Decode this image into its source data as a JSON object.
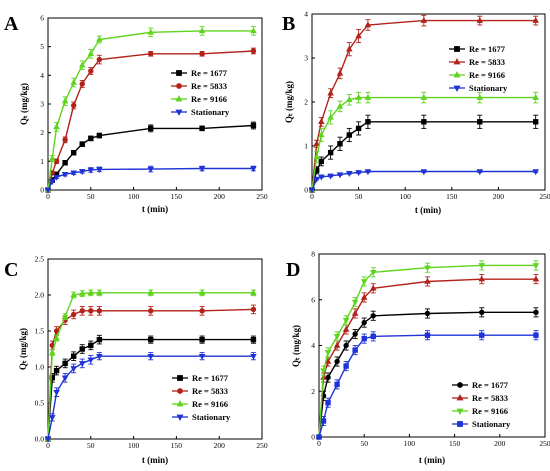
{
  "chart_data": [
    {
      "type": "line",
      "panel_label": "A",
      "xlabel": "t (min)",
      "ylabel": "Qₜ (mg/kg)",
      "xlim": [
        0,
        250
      ],
      "ylim": [
        0,
        6
      ],
      "xticks": [
        "0",
        "50",
        "100",
        "150",
        "200",
        "250"
      ],
      "yticks": [
        "0",
        "1",
        "2",
        "3",
        "4",
        "5",
        "6"
      ],
      "legend_position": "right-middle",
      "series": [
        {
          "name": "Re = 1677",
          "color": "#000000",
          "marker": "square",
          "x": [
            0,
            5,
            10,
            20,
            30,
            40,
            50,
            60,
            120,
            180,
            240
          ],
          "y": [
            0,
            0.35,
            0.55,
            0.95,
            1.3,
            1.6,
            1.8,
            1.9,
            2.15,
            2.15,
            2.25
          ],
          "err": [
            0,
            0.05,
            0.06,
            0.08,
            0.08,
            0.08,
            0.08,
            0.08,
            0.12,
            0.08,
            0.12
          ]
        },
        {
          "name": "Re = 5833",
          "color": "#b2221a",
          "marker": "circle",
          "x": [
            0,
            5,
            10,
            20,
            30,
            40,
            50,
            60,
            120,
            180,
            240
          ],
          "y": [
            0,
            0.6,
            1.0,
            1.75,
            2.95,
            3.7,
            4.15,
            4.55,
            4.75,
            4.75,
            4.85
          ],
          "err": [
            0,
            0.05,
            0.08,
            0.1,
            0.12,
            0.12,
            0.12,
            0.15,
            0.08,
            0.08,
            0.1
          ]
        },
        {
          "name": "Re = 9166",
          "color": "#5fd41e",
          "marker": "triangle-up",
          "x": [
            0,
            5,
            10,
            20,
            30,
            40,
            50,
            60,
            120,
            180,
            240
          ],
          "y": [
            0,
            1.1,
            2.2,
            3.1,
            3.75,
            4.35,
            4.75,
            5.25,
            5.5,
            5.55,
            5.55
          ],
          "err": [
            0,
            0.1,
            0.15,
            0.15,
            0.15,
            0.15,
            0.15,
            0.12,
            0.15,
            0.15,
            0.15
          ]
        },
        {
          "name": "Stationary",
          "color": "#1f33d6",
          "marker": "triangle-down",
          "x": [
            0,
            5,
            10,
            20,
            30,
            40,
            50,
            60,
            120,
            180,
            240
          ],
          "y": [
            0,
            0.3,
            0.45,
            0.55,
            0.6,
            0.65,
            0.7,
            0.72,
            0.73,
            0.75,
            0.75
          ],
          "err": [
            0,
            0.04,
            0.05,
            0.06,
            0.06,
            0.06,
            0.08,
            0.08,
            0.1,
            0.08,
            0.08
          ]
        }
      ]
    },
    {
      "type": "line",
      "panel_label": "B",
      "xlabel": "t (min)",
      "ylabel": "Qₜ (mg/kg)",
      "xlim": [
        0,
        250
      ],
      "ylim": [
        0,
        4
      ],
      "xticks": [
        "0",
        "50",
        "100",
        "150",
        "200",
        "250"
      ],
      "yticks": [
        "0",
        "1",
        "2",
        "3",
        "4"
      ],
      "legend_position": "right-middle",
      "series": [
        {
          "name": "Re = 1677",
          "color": "#000000",
          "marker": "square",
          "x": [
            0,
            5,
            10,
            20,
            30,
            40,
            50,
            60,
            120,
            180,
            240
          ],
          "y": [
            0,
            0.45,
            0.65,
            0.85,
            1.05,
            1.25,
            1.4,
            1.55,
            1.55,
            1.55,
            1.55
          ],
          "err": [
            0,
            0.08,
            0.1,
            0.15,
            0.15,
            0.15,
            0.15,
            0.15,
            0.15,
            0.15,
            0.15
          ]
        },
        {
          "name": "Re = 5833",
          "color": "#b2221a",
          "marker": "triangle-up",
          "x": [
            0,
            5,
            10,
            20,
            30,
            40,
            50,
            60,
            120,
            180,
            240
          ],
          "y": [
            0,
            1.05,
            1.55,
            2.2,
            2.65,
            3.2,
            3.5,
            3.75,
            3.85,
            3.85,
            3.85
          ],
          "err": [
            0,
            0.08,
            0.1,
            0.1,
            0.12,
            0.15,
            0.15,
            0.12,
            0.12,
            0.1,
            0.1
          ]
        },
        {
          "name": "Re = 9166",
          "color": "#5fd41e",
          "marker": "triangle-up",
          "x": [
            0,
            5,
            10,
            20,
            30,
            40,
            50,
            60,
            120,
            180,
            240
          ],
          "y": [
            0,
            0.75,
            1.25,
            1.65,
            1.9,
            2.05,
            2.1,
            2.1,
            2.1,
            2.1,
            2.1
          ],
          "err": [
            0,
            0.12,
            0.15,
            0.15,
            0.12,
            0.12,
            0.12,
            0.12,
            0.12,
            0.12,
            0.12
          ]
        },
        {
          "name": "Stationary",
          "color": "#1f33d6",
          "marker": "triangle-down",
          "x": [
            0,
            5,
            10,
            20,
            30,
            40,
            50,
            60,
            120,
            180,
            240
          ],
          "y": [
            0,
            0.25,
            0.3,
            0.32,
            0.35,
            0.38,
            0.4,
            0.42,
            0.42,
            0.42,
            0.42
          ],
          "err": [
            0,
            0.02,
            0.02,
            0.02,
            0.02,
            0.02,
            0.02,
            0.02,
            0.02,
            0.02,
            0.02
          ]
        }
      ]
    },
    {
      "type": "line",
      "panel_label": "C",
      "xlabel": "t (min)",
      "ylabel": "Qₜ (mg/kg)",
      "xlim": [
        0,
        250
      ],
      "ylim": [
        0,
        2.5
      ],
      "xticks": [
        "0",
        "50",
        "100",
        "150",
        "200",
        "250"
      ],
      "yticks": [
        "0.0",
        "0.5",
        "1.0",
        "1.5",
        "2.0",
        "2.5"
      ],
      "legend_position": "bottom-right",
      "series": [
        {
          "name": "Re = 1677",
          "color": "#000000",
          "marker": "square",
          "x": [
            0,
            5,
            10,
            20,
            30,
            40,
            50,
            60,
            120,
            180,
            240
          ],
          "y": [
            0,
            0.85,
            0.95,
            1.05,
            1.15,
            1.25,
            1.3,
            1.38,
            1.38,
            1.38,
            1.38
          ],
          "err": [
            0,
            0.06,
            0.06,
            0.06,
            0.06,
            0.06,
            0.06,
            0.06,
            0.05,
            0.05,
            0.05
          ]
        },
        {
          "name": "Re = 5833",
          "color": "#b2221a",
          "marker": "circle",
          "x": [
            0,
            5,
            10,
            20,
            30,
            40,
            50,
            60,
            120,
            180,
            240
          ],
          "y": [
            0,
            1.3,
            1.5,
            1.65,
            1.73,
            1.78,
            1.78,
            1.78,
            1.78,
            1.78,
            1.8
          ],
          "err": [
            0,
            0.06,
            0.06,
            0.06,
            0.06,
            0.06,
            0.06,
            0.06,
            0.06,
            0.06,
            0.06
          ]
        },
        {
          "name": "Re = 9166",
          "color": "#5fd41e",
          "marker": "triangle-up",
          "x": [
            0,
            5,
            10,
            20,
            30,
            40,
            50,
            60,
            120,
            180,
            240
          ],
          "y": [
            0,
            1.2,
            1.4,
            1.7,
            2.0,
            2.02,
            2.03,
            2.03,
            2.03,
            2.03,
            2.03
          ],
          "err": [
            0,
            0.04,
            0.04,
            0.04,
            0.04,
            0.04,
            0.04,
            0.04,
            0.04,
            0.04,
            0.04
          ]
        },
        {
          "name": "Stationary",
          "color": "#1f33d6",
          "marker": "triangle-down",
          "x": [
            0,
            5,
            10,
            20,
            30,
            40,
            50,
            60,
            120,
            180,
            240
          ],
          "y": [
            0,
            0.3,
            0.65,
            0.85,
            0.98,
            1.05,
            1.1,
            1.15,
            1.15,
            1.15,
            1.15
          ],
          "err": [
            0,
            0.05,
            0.06,
            0.06,
            0.06,
            0.06,
            0.06,
            0.05,
            0.05,
            0.05,
            0.05
          ]
        }
      ]
    },
    {
      "type": "line",
      "panel_label": "D",
      "xlabel": "t (min)",
      "ylabel": "Qₜ (mg/kg)",
      "xlim": [
        0,
        250
      ],
      "ylim": [
        0,
        8
      ],
      "xticks": [
        "0",
        "50",
        "100",
        "150",
        "200",
        "250"
      ],
      "yticks": [
        "0",
        "2",
        "4",
        "6",
        "8"
      ],
      "legend_position": "bottom-right",
      "series": [
        {
          "name": "Re = 1677",
          "color": "#000000",
          "marker": "circle",
          "x": [
            0,
            5,
            10,
            20,
            30,
            40,
            50,
            60,
            120,
            180,
            240
          ],
          "y": [
            0,
            1.8,
            2.6,
            3.3,
            4.0,
            4.5,
            5.0,
            5.3,
            5.4,
            5.45,
            5.45
          ],
          "err": [
            0,
            0.2,
            0.2,
            0.2,
            0.2,
            0.2,
            0.2,
            0.2,
            0.2,
            0.2,
            0.2
          ]
        },
        {
          "name": "Re = 5833",
          "color": "#b2221a",
          "marker": "triangle-up",
          "x": [
            0,
            5,
            10,
            20,
            30,
            40,
            50,
            60,
            120,
            180,
            240
          ],
          "y": [
            0,
            2.6,
            3.3,
            4.0,
            4.7,
            5.4,
            6.1,
            6.5,
            6.8,
            6.9,
            6.9
          ],
          "err": [
            0,
            0.2,
            0.2,
            0.2,
            0.2,
            0.2,
            0.2,
            0.2,
            0.2,
            0.2,
            0.2
          ]
        },
        {
          "name": "Re = 9166",
          "color": "#5fd41e",
          "marker": "triangle-down",
          "x": [
            0,
            5,
            10,
            20,
            30,
            40,
            50,
            60,
            120,
            180,
            240
          ],
          "y": [
            0,
            2.9,
            3.7,
            4.4,
            5.1,
            5.9,
            6.8,
            7.2,
            7.4,
            7.5,
            7.5
          ],
          "err": [
            0,
            0.2,
            0.2,
            0.2,
            0.2,
            0.2,
            0.2,
            0.2,
            0.2,
            0.2,
            0.2
          ]
        },
        {
          "name": "Stationary",
          "color": "#1f33d6",
          "marker": "square",
          "x": [
            0,
            5,
            10,
            20,
            30,
            40,
            50,
            60,
            120,
            180,
            240
          ],
          "y": [
            0,
            0.7,
            1.5,
            2.3,
            3.1,
            3.8,
            4.3,
            4.4,
            4.45,
            4.45,
            4.45
          ],
          "err": [
            0,
            0.2,
            0.2,
            0.2,
            0.2,
            0.2,
            0.2,
            0.2,
            0.2,
            0.2,
            0.2
          ]
        }
      ]
    }
  ]
}
